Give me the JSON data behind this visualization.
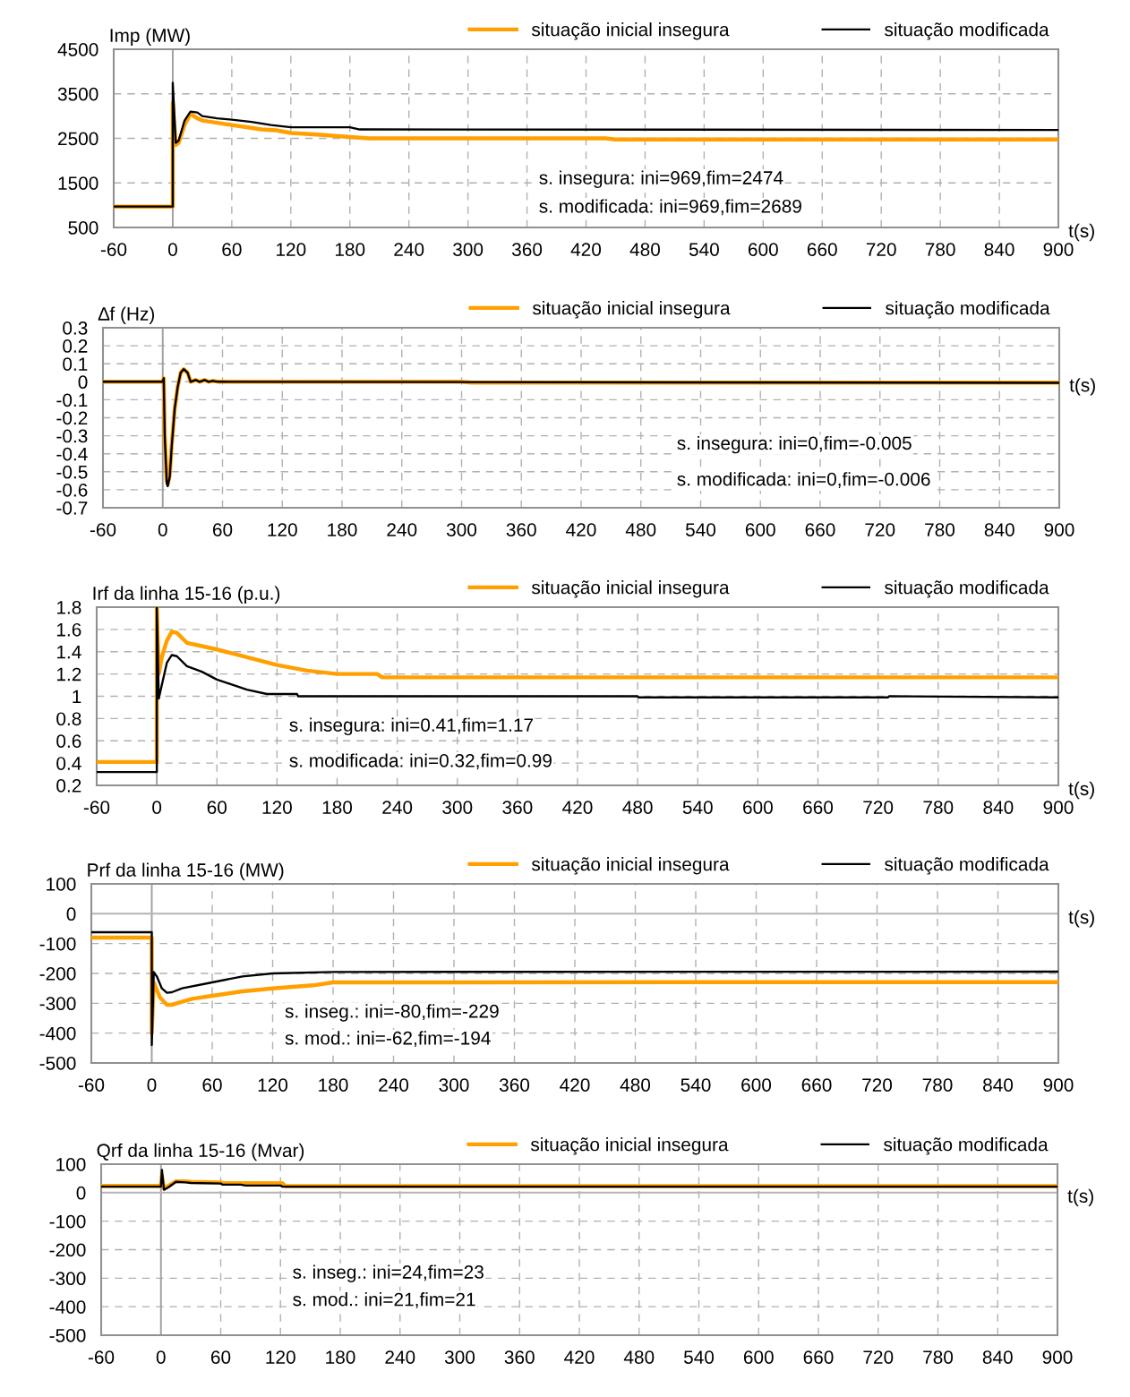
{
  "chart_data": [
    {
      "type": "line",
      "ylabel": "Imp (MW)",
      "xlabel": "t(s)",
      "xlim": [
        -60,
        900
      ],
      "xticks": [
        -60,
        0,
        60,
        120,
        180,
        240,
        300,
        360,
        420,
        480,
        540,
        600,
        660,
        720,
        780,
        840,
        900
      ],
      "ylim": [
        500,
        4500
      ],
      "yticks": [
        500,
        1500,
        2500,
        3500,
        4500
      ],
      "grid": true,
      "legend": "top right",
      "line_style": "solid",
      "marker": "none",
      "annotations": [
        "s. insegura: ini=969,fim=2474",
        "s. modificada: ini=969,fim=2689"
      ],
      "ref_lines": [
        {
          "axis": "x",
          "value": 0,
          "label": null,
          "color": "#a0a0a0"
        }
      ],
      "series": [
        {
          "name": "situação inicial insegura",
          "color": "#ffa000",
          "x": [
            -60,
            0,
            0,
            3,
            6,
            12,
            18,
            25,
            30,
            45,
            60,
            75,
            90,
            105,
            120,
            150,
            180,
            200,
            440,
            450,
            900
          ],
          "values": [
            969,
            969,
            3300,
            2350,
            2400,
            2800,
            3050,
            2950,
            2900,
            2850,
            2800,
            2750,
            2700,
            2680,
            2620,
            2580,
            2530,
            2500,
            2500,
            2474,
            2474
          ]
        },
        {
          "name": "situação modificada",
          "color": "#000000",
          "x": [
            -60,
            0,
            0,
            3,
            6,
            12,
            18,
            25,
            30,
            45,
            60,
            80,
            100,
            120,
            150,
            180,
            190,
            900
          ],
          "values": [
            969,
            969,
            3750,
            2400,
            2450,
            2900,
            3100,
            3080,
            3000,
            2950,
            2920,
            2870,
            2800,
            2750,
            2750,
            2750,
            2700,
            2689
          ]
        }
      ]
    },
    {
      "type": "line",
      "ylabel": "∆f (Hz)",
      "xlabel": "t(s)",
      "xlim": [
        -60,
        900
      ],
      "xticks": [
        -60,
        0,
        60,
        120,
        180,
        240,
        300,
        360,
        420,
        480,
        540,
        600,
        660,
        720,
        780,
        840,
        900
      ],
      "ylim": [
        -0.7,
        0.3
      ],
      "yticks": [
        -0.7,
        -0.6,
        -0.5,
        -0.4,
        -0.3,
        -0.2,
        -0.1,
        0,
        0.1,
        0.2,
        0.3
      ],
      "grid": true,
      "legend": "top right",
      "line_style": "solid",
      "marker": "none",
      "annotations": [
        "s. insegura: ini=0,fim=-0.005",
        "s. modificada: ini=0,fim=-0.006"
      ],
      "ref_lines": [
        {
          "axis": "x",
          "value": 0,
          "label": null,
          "color": "#a0a0a0"
        }
      ],
      "series": [
        {
          "name": "situação inicial insegura",
          "color": "#ffa000",
          "x": [
            -60,
            0,
            1,
            2,
            4,
            5,
            7,
            9,
            12,
            15,
            18,
            21,
            25,
            28,
            33,
            37,
            42,
            46,
            50,
            56,
            60,
            300,
            310,
            900
          ],
          "values": [
            0,
            0,
            0.02,
            -0.3,
            -0.55,
            -0.57,
            -0.52,
            -0.35,
            -0.15,
            -0.03,
            0.05,
            0.07,
            0.05,
            0.0,
            0.01,
            0.0,
            0.01,
            0.0,
            0.005,
            0.0,
            0.0,
            0.0,
            -0.005,
            -0.005
          ]
        },
        {
          "name": "situação modificada",
          "color": "#000000",
          "x": [
            -60,
            0,
            1,
            2,
            4,
            5,
            7,
            9,
            12,
            15,
            18,
            21,
            25,
            28,
            33,
            37,
            42,
            46,
            50,
            56,
            60,
            900
          ],
          "values": [
            0,
            0,
            0.02,
            -0.3,
            -0.56,
            -0.58,
            -0.53,
            -0.36,
            -0.15,
            -0.03,
            0.05,
            0.07,
            0.05,
            0.0,
            0.01,
            0.0,
            0.01,
            0.0,
            0.005,
            0.0,
            0.0,
            -0.006
          ]
        }
      ]
    },
    {
      "type": "line",
      "ylabel": "Irf da linha 15-16 (p.u.)",
      "xlabel": "t(s)",
      "xlim": [
        -60,
        900
      ],
      "xticks": [
        -60,
        0,
        60,
        120,
        180,
        240,
        300,
        360,
        420,
        480,
        540,
        600,
        660,
        720,
        780,
        840,
        900
      ],
      "ylim": [
        0.2,
        1.8
      ],
      "yticks": [
        0.2,
        0.4,
        0.6,
        0.8,
        1,
        1.2,
        1.4,
        1.6,
        1.8
      ],
      "grid": true,
      "legend": "top right",
      "line_style": "solid",
      "marker": "none",
      "annotations": [
        "s. insegura: ini=0.41,fim=1.17",
        "s. modificada: ini=0.32,fim=0.99"
      ],
      "ref_lines": [
        {
          "axis": "x",
          "value": 0,
          "label": null,
          "color": "#a0a0a0"
        }
      ],
      "series": [
        {
          "name": "situação inicial insegura",
          "color": "#ffa000",
          "x": [
            -60,
            0,
            0,
            2,
            5,
            10,
            15,
            20,
            30,
            45,
            60,
            90,
            120,
            150,
            180,
            220,
            225,
            900
          ],
          "values": [
            0.41,
            0.41,
            1.8,
            1.2,
            1.35,
            1.5,
            1.58,
            1.57,
            1.48,
            1.45,
            1.42,
            1.35,
            1.28,
            1.23,
            1.2,
            1.2,
            1.17,
            1.17
          ]
        },
        {
          "name": "situação modificada",
          "color": "#000000",
          "x": [
            -60,
            0,
            0,
            2,
            5,
            10,
            15,
            20,
            30,
            45,
            60,
            90,
            110,
            140,
            141,
            480,
            481,
            730,
            731,
            900
          ],
          "values": [
            0.32,
            0.32,
            1.8,
            0.98,
            1.1,
            1.3,
            1.37,
            1.36,
            1.27,
            1.22,
            1.15,
            1.06,
            1.02,
            1.02,
            1.0,
            1.0,
            0.99,
            0.99,
            1.0,
            0.99
          ]
        }
      ]
    },
    {
      "type": "line",
      "ylabel": "Prf da linha 15-16 (MW)",
      "xlabel": "t(s)",
      "xlim": [
        -60,
        900
      ],
      "xticks": [
        -60,
        0,
        60,
        120,
        180,
        240,
        300,
        360,
        420,
        480,
        540,
        600,
        660,
        720,
        780,
        840,
        900
      ],
      "ylim": [
        -500,
        100
      ],
      "yticks": [
        -500,
        -400,
        -300,
        -200,
        -100,
        0,
        100
      ],
      "grid": true,
      "legend": "top right",
      "line_style": "solid",
      "marker": "none",
      "annotations": [
        "s. inseg.: ini=-80,fim=-229",
        "s. mod.: ini=-62,fim=-194"
      ],
      "ref_lines": [
        {
          "axis": "x",
          "value": 0,
          "label": null,
          "color": "#a0a0a0"
        },
        {
          "axis": "y",
          "value": 0,
          "label": null,
          "color": "#b4b4b4"
        }
      ],
      "series": [
        {
          "name": "situação inicial insegura",
          "color": "#ffa000",
          "x": [
            -60,
            0,
            0,
            2,
            8,
            15,
            20,
            30,
            40,
            60,
            90,
            120,
            160,
            180,
            900
          ],
          "values": [
            -80,
            -80,
            -400,
            -230,
            -280,
            -305,
            -305,
            -295,
            -285,
            -275,
            -260,
            -250,
            -240,
            -230,
            -229
          ]
        },
        {
          "name": "situação modificada",
          "color": "#000000",
          "x": [
            -60,
            0,
            0,
            2,
            5,
            10,
            15,
            20,
            30,
            60,
            90,
            120,
            180,
            900
          ],
          "values": [
            -62,
            -62,
            -440,
            -195,
            -210,
            -250,
            -265,
            -263,
            -250,
            -230,
            -210,
            -200,
            -195,
            -194
          ]
        }
      ]
    },
    {
      "type": "line",
      "ylabel": "Qrf da linha 15-16 (Mvar)",
      "xlabel": "t(s)",
      "xlim": [
        -60,
        900
      ],
      "xticks": [
        -60,
        0,
        60,
        120,
        180,
        240,
        300,
        360,
        420,
        480,
        540,
        600,
        660,
        720,
        780,
        840,
        900
      ],
      "ylim": [
        -500,
        100
      ],
      "yticks": [
        -500,
        -400,
        -300,
        -200,
        -100,
        0,
        100
      ],
      "grid": true,
      "legend": "top right",
      "line_style": "solid",
      "marker": "none",
      "annotations": [
        "s. inseg.: ini=24,fim=23",
        "s. mod.: ini=21,fim=21"
      ],
      "ref_lines": [
        {
          "axis": "x",
          "value": 0,
          "label": null,
          "color": "#a0a0a0"
        },
        {
          "axis": "y",
          "value": 0,
          "label": null,
          "color": "#b4b4b4"
        }
      ],
      "series": [
        {
          "name": "situação inicial insegura",
          "color": "#ffa000",
          "x": [
            -60,
            0,
            1,
            3,
            8,
            15,
            25,
            30,
            60,
            62,
            122,
            125,
            900
          ],
          "values": [
            24,
            24,
            60,
            15,
            25,
            40,
            40,
            38,
            36,
            33,
            33,
            23,
            23
          ]
        },
        {
          "name": "situação modificada",
          "color": "#000000",
          "x": [
            -60,
            0,
            1,
            3,
            8,
            15,
            25,
            30,
            60,
            62,
            80,
            85,
            120,
            122,
            900
          ],
          "values": [
            21,
            21,
            80,
            10,
            20,
            38,
            36,
            34,
            32,
            28,
            28,
            25,
            25,
            21,
            21
          ]
        }
      ]
    }
  ]
}
